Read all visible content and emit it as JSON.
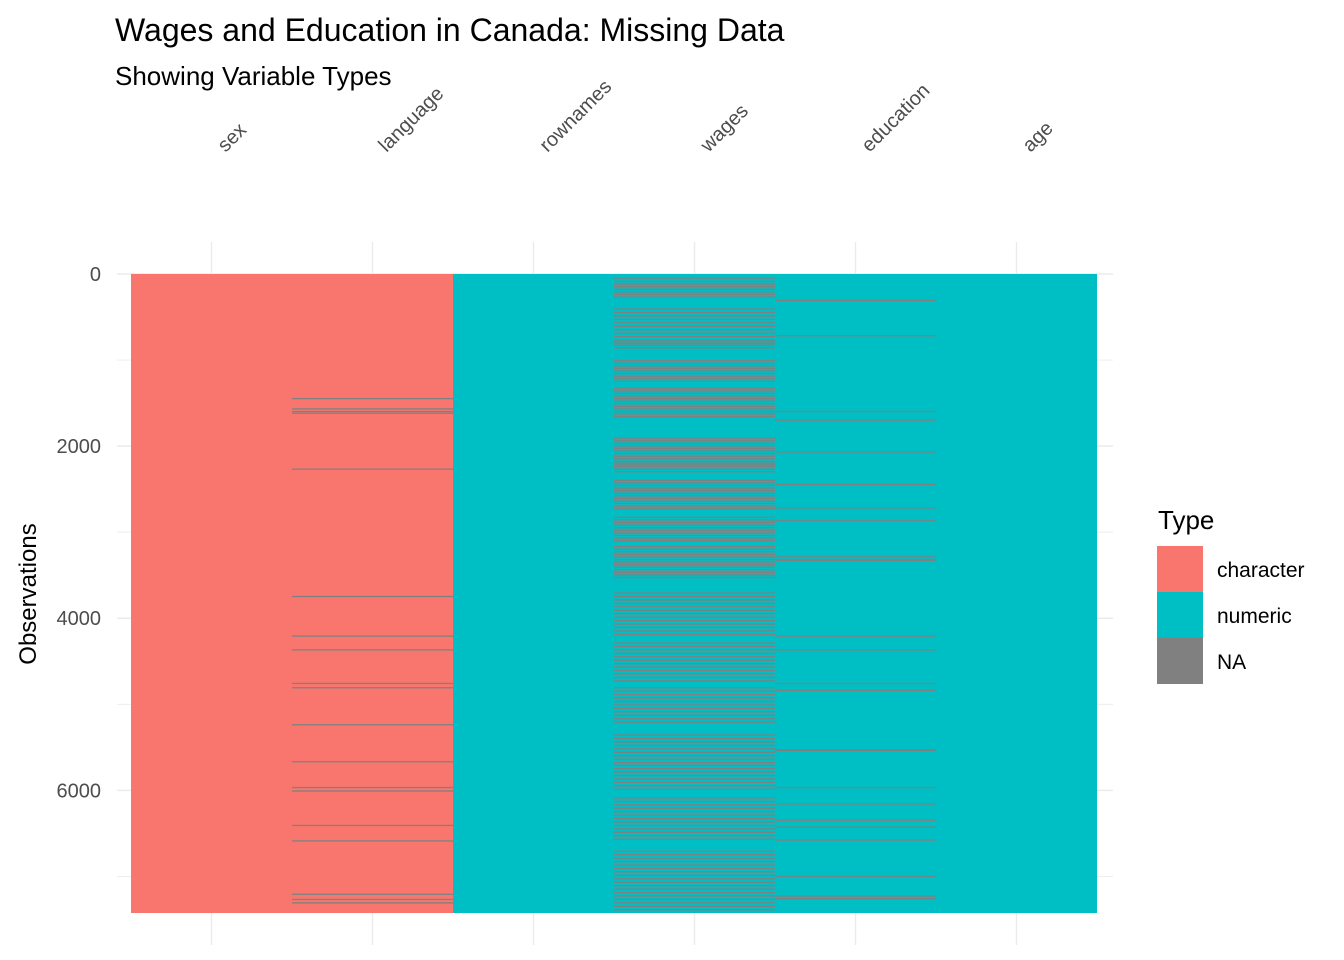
{
  "chart_data": {
    "type": "heatmap",
    "title": "Wages and Education in Canada: Missing Data",
    "subtitle": "Showing Variable Types",
    "xlabel": "",
    "ylabel": "Observations",
    "categories": [
      "sex",
      "language",
      "rownames",
      "wages",
      "education",
      "age"
    ],
    "column_types": [
      "character",
      "character",
      "numeric",
      "numeric",
      "numeric",
      "numeric"
    ],
    "y_ticks": [
      0,
      2000,
      4000,
      6000
    ],
    "ylim": [
      0,
      7425
    ],
    "n_observations": 7425,
    "grid": true,
    "legend": {
      "title": "Type",
      "position": "right",
      "entries": [
        {
          "label": "character",
          "color": "#F8766D"
        },
        {
          "label": "numeric",
          "color": "#00BFC4"
        },
        {
          "label": "NA",
          "color": "#808080"
        }
      ]
    },
    "missing_rows": {
      "sex": [],
      "language": [
        1440,
        1560,
        1590,
        1610,
        2260,
        3740,
        4200,
        4360,
        4750,
        4800,
        5230,
        5660,
        5960,
        6000,
        6400,
        6580,
        7200,
        7260,
        7300
      ],
      "rownames": [],
      "wages": [
        40,
        80,
        110,
        140,
        170,
        200,
        230,
        260,
        400,
        440,
        480,
        520,
        560,
        600,
        640,
        680,
        720,
        760,
        780,
        800,
        820,
        850,
        1000,
        1030,
        1060,
        1090,
        1120,
        1150,
        1180,
        1210,
        1240,
        1320,
        1350,
        1380,
        1410,
        1440,
        1470,
        1500,
        1530,
        1560,
        1590,
        1620,
        1650,
        1900,
        1930,
        1960,
        1990,
        2020,
        2050,
        2080,
        2110,
        2140,
        2170,
        2190,
        2210,
        2230,
        2260,
        2290,
        2390,
        2420,
        2450,
        2480,
        2510,
        2540,
        2570,
        2600,
        2630,
        2660,
        2690,
        2720,
        2820,
        2850,
        2880,
        2910,
        2940,
        2970,
        3000,
        3030,
        3060,
        3090,
        3160,
        3190,
        3220,
        3250,
        3280,
        3310,
        3340,
        3370,
        3400,
        3430,
        3460,
        3490,
        3520,
        3700,
        3740,
        3780,
        3820,
        3860,
        3900,
        3940,
        3980,
        4020,
        4060,
        4100,
        4140,
        4180,
        4280,
        4320,
        4360,
        4400,
        4440,
        4480,
        4520,
        4560,
        4600,
        4640,
        4680,
        4720,
        4800,
        4840,
        4880,
        4920,
        4960,
        5000,
        5040,
        5080,
        5120,
        5160,
        5200,
        5350,
        5390,
        5430,
        5470,
        5510,
        5550,
        5590,
        5630,
        5670,
        5700,
        5740,
        5780,
        5820,
        5860,
        5900,
        5940,
        5980,
        6080,
        6120,
        6160,
        6200,
        6240,
        6280,
        6320,
        6360,
        6400,
        6440,
        6480,
        6520,
        6560,
        6700,
        6740,
        6780,
        6820,
        6860,
        6900,
        6940,
        6980,
        7020,
        7060,
        7100,
        7140,
        7180,
        7220,
        7260,
        7300,
        7340,
        7380
      ],
      "education": [
        300,
        710,
        1590,
        1690,
        2060,
        2440,
        2710,
        2860,
        3280,
        3310,
        3320,
        4200,
        4360,
        4750,
        4830,
        5520,
        5530,
        5960,
        6150,
        6340,
        6420,
        6570,
        6990,
        7220,
        7250
      ],
      "age": []
    }
  }
}
